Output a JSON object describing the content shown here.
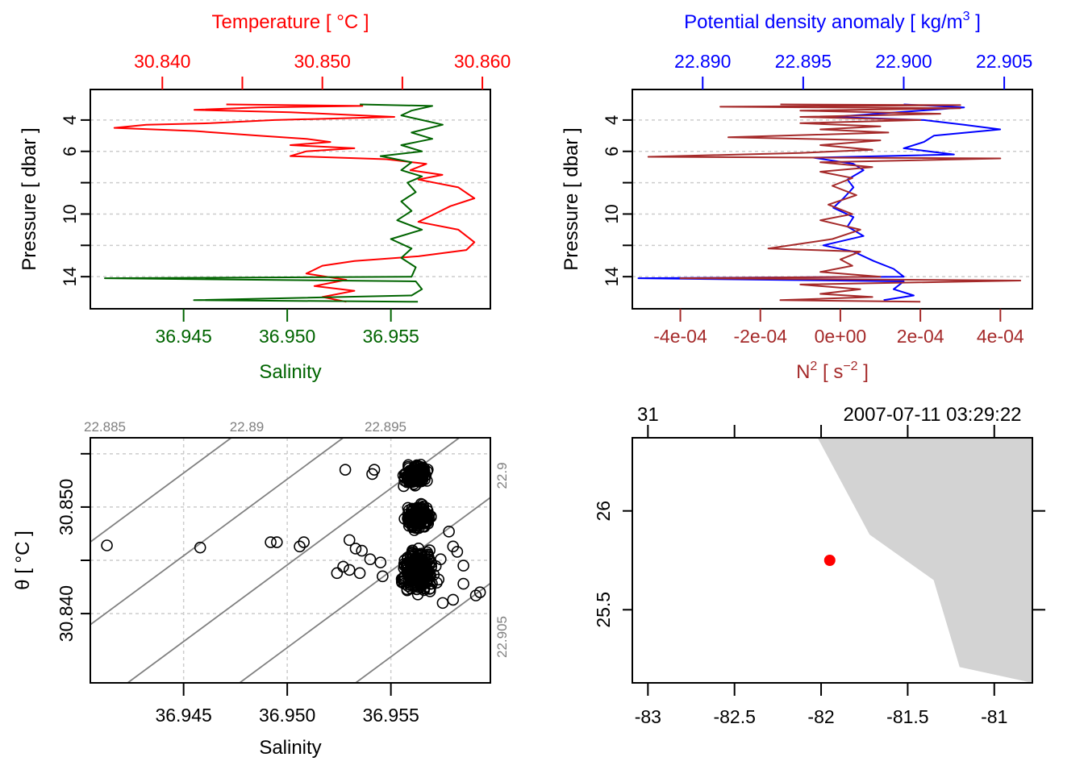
{
  "chart_data": [
    {
      "id": "profile-ts",
      "type": "line",
      "title": "",
      "top_axis": {
        "label": "Temperature [ °C ]",
        "color": "#ff0000",
        "range": [
          30.8355,
          30.8605
        ],
        "ticks": [
          30.84,
          30.845,
          30.85,
          30.855,
          30.86
        ],
        "tick_labels": [
          "30.840",
          "",
          "30.850",
          "",
          "30.860"
        ]
      },
      "bottom_axis": {
        "label": "Salinity",
        "color": "#006400",
        "range": [
          36.9405,
          36.9598
        ],
        "ticks": [
          36.945,
          36.95,
          36.955
        ],
        "tick_labels": [
          "36.945",
          "36.950",
          "36.955"
        ]
      },
      "y_axis": {
        "label": "Pressure [ dbar ]",
        "range": [
          16.05,
          2.05
        ],
        "ticks": [
          4,
          6,
          8,
          10,
          12,
          14
        ],
        "tick_labels": [
          "4",
          "6",
          "",
          "10",
          "",
          "14"
        ],
        "grid": true
      },
      "series": [
        {
          "name": "Temperature",
          "color": "#ff0000",
          "axis": "top",
          "points": [
            [
              30.844,
              3.0
            ],
            [
              30.8525,
              3.1
            ],
            [
              30.846,
              3.2
            ],
            [
              30.842,
              3.35
            ],
            [
              30.848,
              3.5
            ],
            [
              30.8545,
              3.8
            ],
            [
              30.847,
              4.0
            ],
            [
              30.843,
              4.2
            ],
            [
              30.839,
              4.3
            ],
            [
              30.837,
              4.5
            ],
            [
              30.842,
              4.7
            ],
            [
              30.846,
              5.0
            ],
            [
              30.849,
              5.2
            ],
            [
              30.8505,
              5.4
            ],
            [
              30.848,
              5.6
            ],
            [
              30.852,
              5.8
            ],
            [
              30.849,
              6.0
            ],
            [
              30.848,
              6.3
            ],
            [
              30.854,
              6.5
            ],
            [
              30.8565,
              6.8
            ],
            [
              30.8555,
              7.2
            ],
            [
              30.8575,
              7.5
            ],
            [
              30.856,
              7.8
            ],
            [
              30.8585,
              8.3
            ],
            [
              30.8595,
              9.0
            ],
            [
              30.858,
              9.5
            ],
            [
              30.857,
              10.0
            ],
            [
              30.856,
              10.5
            ],
            [
              30.8585,
              11.0
            ],
            [
              30.8595,
              11.8
            ],
            [
              30.859,
              12.3
            ],
            [
              30.856,
              12.7
            ],
            [
              30.852,
              13.0
            ],
            [
              30.85,
              13.3
            ],
            [
              30.849,
              13.8
            ],
            [
              30.8515,
              14.2
            ],
            [
              30.8495,
              14.6
            ],
            [
              30.852,
              14.9
            ],
            [
              30.85,
              15.3
            ],
            [
              30.8515,
              15.6
            ]
          ]
        },
        {
          "name": "Salinity",
          "color": "#006400",
          "axis": "bottom",
          "points": [
            [
              36.9535,
              3.0
            ],
            [
              36.957,
              3.1
            ],
            [
              36.956,
              3.4
            ],
            [
              36.9555,
              3.7
            ],
            [
              36.9565,
              4.0
            ],
            [
              36.9575,
              4.3
            ],
            [
              36.956,
              4.8
            ],
            [
              36.957,
              5.2
            ],
            [
              36.9555,
              5.6
            ],
            [
              36.9565,
              6.0
            ],
            [
              36.9545,
              6.3
            ],
            [
              36.956,
              6.7
            ],
            [
              36.9555,
              7.2
            ],
            [
              36.9565,
              7.6
            ],
            [
              36.9558,
              8.0
            ],
            [
              36.9562,
              8.6
            ],
            [
              36.9555,
              9.2
            ],
            [
              36.956,
              9.8
            ],
            [
              36.9553,
              10.4
            ],
            [
              36.9565,
              11.0
            ],
            [
              36.955,
              11.6
            ],
            [
              36.956,
              12.2
            ],
            [
              36.9555,
              12.8
            ],
            [
              36.9562,
              13.4
            ],
            [
              36.956,
              14.0
            ],
            [
              36.9412,
              14.1
            ],
            [
              36.9562,
              14.3
            ],
            [
              36.9565,
              14.8
            ],
            [
              36.956,
              15.2
            ],
            [
              36.9455,
              15.5
            ],
            [
              36.9563,
              15.6
            ]
          ]
        }
      ]
    },
    {
      "id": "profile-density-n2",
      "type": "line",
      "top_axis": {
        "label": "Potential density anomaly [ kg/m³ ]",
        "label_main": "Potential density anomaly [ kg/m",
        "label_sup": "3",
        "label_end": " ]",
        "color": "#0000ff",
        "range": [
          22.8865,
          22.9064
        ],
        "ticks": [
          22.89,
          22.895,
          22.9,
          22.905
        ],
        "tick_labels": [
          "22.890",
          "22.895",
          "22.900",
          "22.905"
        ]
      },
      "bottom_axis": {
        "label": "N² [ s⁻² ]",
        "label_main": "N",
        "label_sup": "2",
        "label_mid": " [ s",
        "label_sup2": "−2",
        "label_end": " ]",
        "color": "#a52a2a",
        "range": [
          -0.00052,
          0.00048
        ],
        "ticks": [
          -0.0004,
          -0.0002,
          0.0,
          0.0002,
          0.0004
        ],
        "tick_labels": [
          "-4e-04",
          "-2e-04",
          "0e+00",
          "2e-04",
          "4e-04"
        ]
      },
      "y_axis": {
        "label": "Pressure [ dbar ]",
        "range": [
          16.05,
          2.05
        ],
        "ticks": [
          4,
          6,
          8,
          10,
          12,
          14
        ],
        "tick_labels": [
          "4",
          "6",
          "",
          "10",
          "",
          "14"
        ],
        "grid": true
      },
      "series": [
        {
          "name": "Potential density anomaly",
          "color": "#0000ff",
          "axis": "top",
          "points": [
            [
              22.9,
              3.0
            ],
            [
              22.903,
              3.2
            ],
            [
              22.8965,
              3.8
            ],
            [
              22.901,
              4.0
            ],
            [
              22.903,
              4.3
            ],
            [
              22.9048,
              4.6
            ],
            [
              22.9015,
              5.0
            ],
            [
              22.901,
              5.4
            ],
            [
              22.9,
              5.8
            ],
            [
              22.9025,
              6.2
            ],
            [
              22.8955,
              6.4
            ],
            [
              22.8975,
              6.8
            ],
            [
              22.898,
              7.2
            ],
            [
              22.8972,
              7.8
            ],
            [
              22.8975,
              8.3
            ],
            [
              22.897,
              9.0
            ],
            [
              22.8965,
              9.6
            ],
            [
              22.8975,
              10.2
            ],
            [
              22.8972,
              10.8
            ],
            [
              22.898,
              11.4
            ],
            [
              22.896,
              12.0
            ],
            [
              22.8975,
              12.4
            ],
            [
              22.8985,
              13.0
            ],
            [
              22.8995,
              13.5
            ],
            [
              22.9,
              14.0
            ],
            [
              22.8868,
              14.1
            ],
            [
              22.9,
              14.3
            ],
            [
              22.8995,
              14.8
            ],
            [
              22.9005,
              15.2
            ],
            [
              22.899,
              15.5
            ]
          ]
        },
        {
          "name": "N2",
          "color": "#a52a2a",
          "axis": "bottom",
          "points": [
            [
              -0.00015,
              3.0
            ],
            [
              0.0003,
              3.05
            ],
            [
              -0.0003,
              3.15
            ],
            [
              0.0003,
              3.25
            ],
            [
              -0.0001,
              3.4
            ],
            [
              0.00025,
              3.6
            ],
            [
              -0.0001,
              3.8
            ],
            [
              0.0002,
              4.0
            ],
            [
              -0.0001,
              4.2
            ],
            [
              0.0001,
              4.4
            ],
            [
              -5e-05,
              4.6
            ],
            [
              0.00012,
              4.8
            ],
            [
              -0.00028,
              5.1
            ],
            [
              0.0001,
              5.3
            ],
            [
              -5e-05,
              5.6
            ],
            [
              8e-05,
              5.9
            ],
            [
              -0.0001,
              6.1
            ],
            [
              -0.00048,
              6.35
            ],
            [
              0.0004,
              6.45
            ],
            [
              -5e-05,
              6.7
            ],
            [
              8e-05,
              7.0
            ],
            [
              -5e-05,
              7.3
            ],
            [
              3e-05,
              7.7
            ],
            [
              -2e-05,
              8.2
            ],
            [
              4e-05,
              8.8
            ],
            [
              -3e-05,
              9.4
            ],
            [
              3e-05,
              10.0
            ],
            [
              -5e-05,
              10.4
            ],
            [
              5e-05,
              11.0
            ],
            [
              -2e-05,
              11.6
            ],
            [
              -0.00018,
              12.2
            ],
            [
              5e-05,
              12.4
            ],
            [
              0.0,
              12.9
            ],
            [
              3e-05,
              13.3
            ],
            [
              -5e-05,
              13.7
            ],
            [
              0.0001,
              14.0
            ],
            [
              -0.0004,
              14.1
            ],
            [
              0.00045,
              14.25
            ],
            [
              -0.0001,
              14.5
            ],
            [
              5e-05,
              14.8
            ],
            [
              -5e-05,
              15.1
            ],
            [
              8e-05,
              15.3
            ],
            [
              -0.00015,
              15.5
            ],
            [
              0.0002,
              15.6
            ]
          ]
        }
      ]
    },
    {
      "id": "ts-diagram",
      "type": "scatter",
      "xlabel": "Salinity",
      "ylabel": "θ [ °C ]",
      "xlim": [
        36.9405,
        36.9598
      ],
      "ylim": [
        30.8335,
        30.8565
      ],
      "x_ticks": [
        36.945,
        36.95,
        36.955
      ],
      "x_tick_labels": [
        "36.945",
        "36.950",
        "36.955"
      ],
      "y_ticks": [
        30.84,
        30.845,
        30.85,
        30.855
      ],
      "y_tick_labels": [
        "30.840",
        "",
        "30.850",
        ""
      ],
      "grid": true,
      "marker": "open-circle",
      "color": "#000000",
      "isopycnals": {
        "color": "#808080",
        "levels": [
          22.885,
          22.89,
          22.895,
          22.9,
          22.905
        ],
        "top_labels": [
          "22.885",
          "22.89",
          "22.895"
        ],
        "right_labels": [
          "22.9",
          "22.905"
        ]
      },
      "points": [
        [
          36.9413,
          30.8464
        ],
        [
          36.9458,
          30.8462
        ],
        [
          36.9492,
          30.8467
        ],
        [
          36.9495,
          30.8467
        ],
        [
          36.9508,
          30.8467
        ],
        [
          36.9506,
          30.8463
        ],
        [
          36.9528,
          30.8535
        ],
        [
          36.9542,
          30.8535
        ],
        [
          36.9541,
          30.8531
        ],
        [
          36.953,
          30.8469
        ],
        [
          36.9533,
          30.8461
        ],
        [
          36.9536,
          30.8459
        ],
        [
          36.954,
          30.8451
        ],
        [
          36.953,
          30.8441
        ],
        [
          36.9527,
          30.8444
        ],
        [
          36.9524,
          30.8438
        ],
        [
          36.9535,
          30.8438
        ],
        [
          36.9546,
          30.8435
        ],
        [
          36.9545,
          30.8448
        ],
        [
          36.9582,
          30.8458
        ],
        [
          36.9585,
          30.8445
        ],
        [
          36.9585,
          30.8428
        ],
        [
          36.9593,
          30.842
        ],
        [
          36.9591,
          30.8417
        ],
        [
          36.9575,
          30.841
        ],
        [
          36.958,
          30.8413
        ],
        [
          36.9573,
          30.8432
        ],
        [
          36.9566,
          30.8422
        ],
        [
          36.9563,
          30.8418
        ],
        [
          36.9566,
          30.8424
        ],
        [
          36.9578,
          30.8477
        ],
        [
          36.958,
          30.8463
        ],
        [
          36.9574,
          30.8451
        ]
      ],
      "clusters": [
        {
          "center": [
            36.9562,
            30.853
          ],
          "spread": [
            0.0007,
            0.0012
          ],
          "count": 160
        },
        {
          "center": [
            36.9563,
            30.849
          ],
          "spread": [
            0.0008,
            0.0015
          ],
          "count": 160
        },
        {
          "center": [
            36.9563,
            30.844
          ],
          "spread": [
            0.001,
            0.0025
          ],
          "count": 280
        }
      ]
    },
    {
      "id": "station-map",
      "type": "scatter",
      "xlim": [
        -83.09,
        -80.78
      ],
      "ylim": [
        25.13,
        26.37
      ],
      "x_ticks": [
        -83,
        -82.5,
        -82,
        -81.5,
        -81
      ],
      "x_tick_labels": [
        "-83",
        "-82.5",
        "-82",
        "-81.5",
        "-81"
      ],
      "y_ticks": [
        25.5,
        26.0
      ],
      "y_tick_labels": [
        "25.5",
        "26"
      ],
      "top_left_label": "31",
      "top_right_label": "2007-07-11 03:29:22",
      "land_color": "#d3d3d3",
      "coastline": [
        [
          -82.02,
          26.37
        ],
        [
          -81.72,
          25.88
        ],
        [
          -81.35,
          25.65
        ],
        [
          -81.2,
          25.21
        ],
        [
          -80.78,
          25.13
        ],
        [
          -80.78,
          26.37
        ]
      ],
      "station": {
        "lon": -81.95,
        "lat": 25.75,
        "color": "#ff0000"
      }
    }
  ]
}
